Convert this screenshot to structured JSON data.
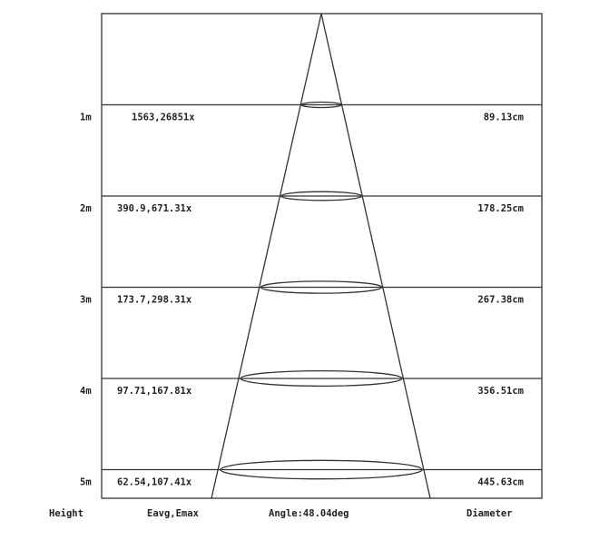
{
  "rows": [
    {
      "height": "1m",
      "illuminance": "1563,26851x",
      "diameter": "89.13cm"
    },
    {
      "height": "2m",
      "illuminance": "390.9,671.31x",
      "diameter": "178.25cm"
    },
    {
      "height": "3m",
      "illuminance": "173.7,298.31x",
      "diameter": "267.38cm"
    },
    {
      "height": "4m",
      "illuminance": "97.71,167.81x",
      "diameter": "356.51cm"
    },
    {
      "height": "5m",
      "illuminance": "62.54,107.41x",
      "diameter": "445.63cm"
    }
  ],
  "footer": {
    "height_label": "Height",
    "illuminance_label": "Eavg,Emax",
    "angle_label": "Angle:48.04deg",
    "diameter_label": "Diameter"
  },
  "colors": {
    "line": "#333333",
    "text": "#222222"
  }
}
